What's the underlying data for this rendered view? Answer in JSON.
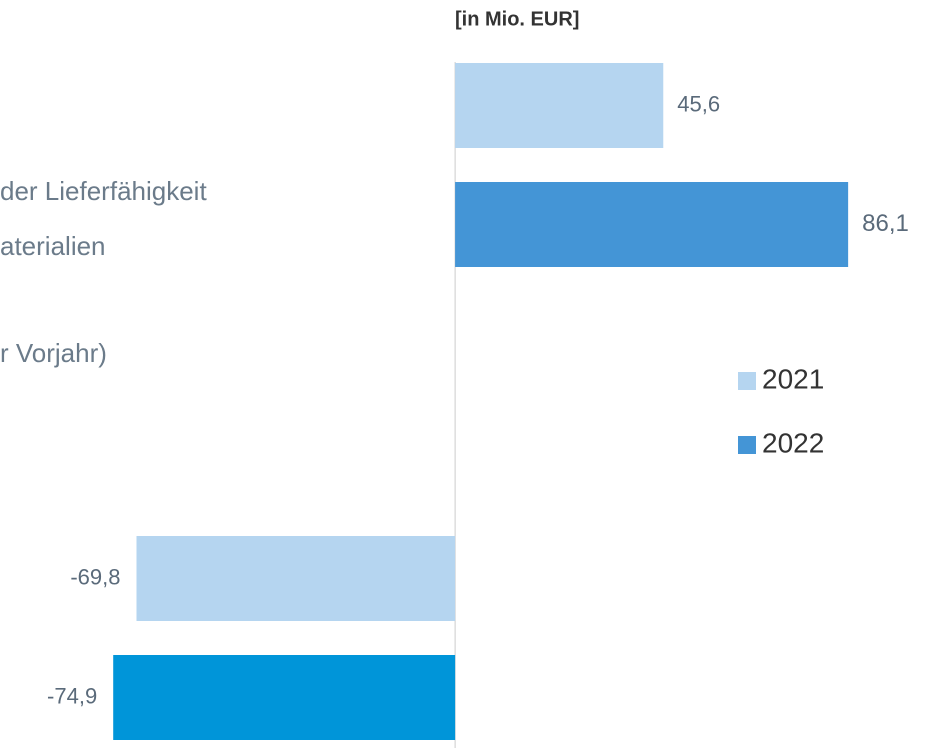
{
  "chart_data": {
    "type": "barh",
    "unit_label": "[in Mio. EUR]",
    "annotations": [
      "der Lieferfähigkeit",
      "aterialien",
      "r Vorjahr)"
    ],
    "categories": [
      null,
      null
    ],
    "series": [
      {
        "name": "2021",
        "color": "#b5d5f0",
        "values": [
          45.6,
          -69.8
        ],
        "value_labels": [
          "45,6",
          "-69,8"
        ]
      },
      {
        "name": "2022",
        "color": "#4495d6",
        "colors": [
          "#4495d6",
          "#0095d9"
        ],
        "values": [
          86.1,
          -74.9
        ],
        "value_labels": [
          "86,1",
          "-74,9"
        ]
      }
    ],
    "xlim": [
      -99.7,
      107.1
    ],
    "grid": false
  }
}
